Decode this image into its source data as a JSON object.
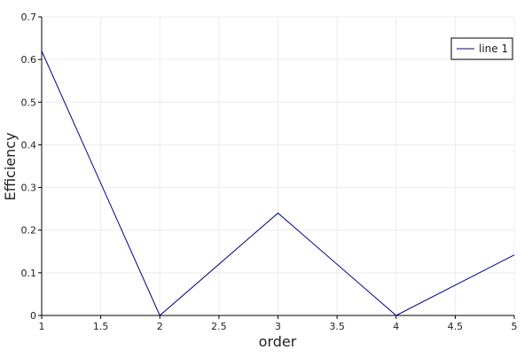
{
  "chart_data": {
    "type": "line",
    "title": "",
    "xlabel": "order",
    "ylabel": "Efficiency",
    "xlim": [
      1,
      5
    ],
    "ylim": [
      0,
      0.7
    ],
    "x_ticks": [
      "1",
      "1.5",
      "2",
      "2.5",
      "3",
      "3.5",
      "4",
      "4.5",
      "5"
    ],
    "y_ticks": [
      "0",
      "0.1",
      "0.2",
      "0.3",
      "0.4",
      "0.5",
      "0.6",
      "0.7"
    ],
    "grid": true,
    "legend_position": "top-right",
    "series": [
      {
        "name": "line 1",
        "color": "#00008b",
        "x": [
          1,
          2,
          3,
          4,
          5
        ],
        "y": [
          0.62,
          0.0,
          0.24,
          0.0,
          0.142
        ]
      }
    ]
  },
  "colors": {
    "grid": "#ececec",
    "axis": "#000000",
    "background": "#ffffff"
  }
}
